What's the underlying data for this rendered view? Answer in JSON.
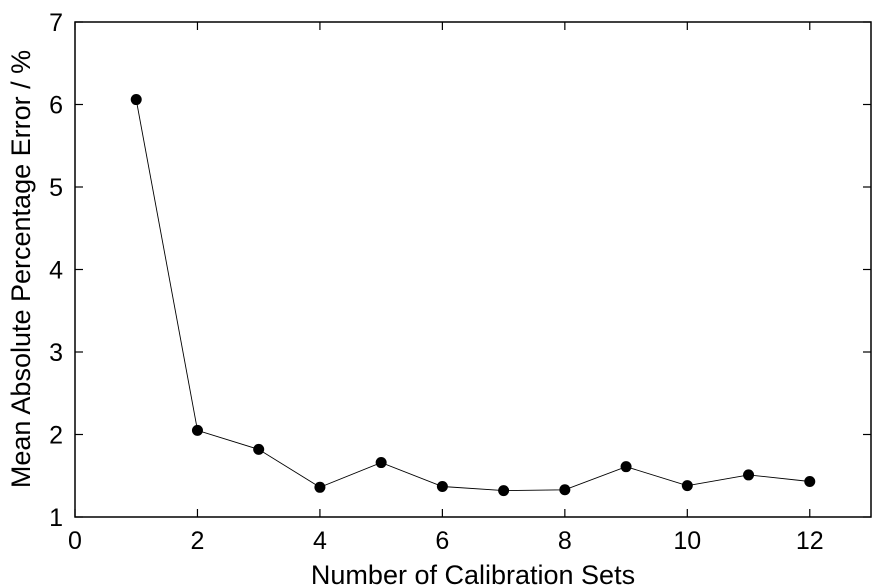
{
  "chart_data": {
    "type": "line",
    "title": "",
    "xlabel": "Number of Calibration Sets",
    "ylabel": "Mean Absolute Percentage Error / %",
    "xlim": [
      0,
      13
    ],
    "ylim": [
      1,
      7
    ],
    "xticks": [
      0,
      2,
      4,
      6,
      8,
      10,
      12
    ],
    "yticks": [
      1,
      2,
      3,
      4,
      5,
      6,
      7
    ],
    "grid": false,
    "series": [
      {
        "x": [
          1,
          2,
          3,
          4,
          5,
          6,
          7,
          8,
          9,
          10,
          11,
          12
        ],
        "y": [
          6.06,
          2.05,
          1.82,
          1.36,
          1.66,
          1.37,
          1.32,
          1.33,
          1.61,
          1.38,
          1.51,
          1.43
        ],
        "color": "#000000",
        "marker": "circle"
      }
    ]
  }
}
